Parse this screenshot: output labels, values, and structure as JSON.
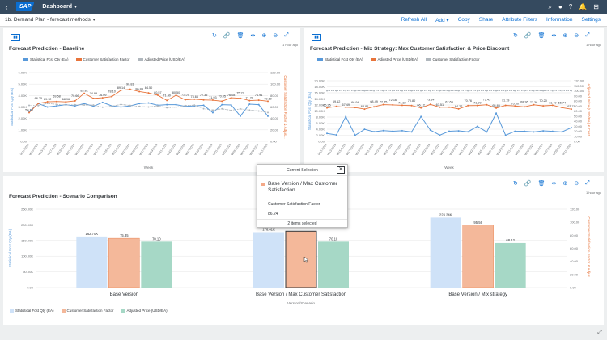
{
  "shell": {
    "back": "‹",
    "logo": "SAP",
    "title": "Dashboard",
    "caret": "▾",
    "icons": [
      "⌕",
      "●",
      "?",
      "🔔",
      "⊞"
    ]
  },
  "subbar": {
    "page_title": "1b. Demand Plan - forecast methods",
    "caret": "▾",
    "menu": [
      "Refresh All",
      "Add ▾",
      "Copy",
      "Share",
      "Attribute Filters",
      "Information",
      "Settings"
    ]
  },
  "panels": [
    {
      "title": "Forecast Prediction - Baseline",
      "ago": "1 hour ago"
    },
    {
      "title": "Forecast Prediction - Mix Strategy: Max Customer Satisfaction & Price Discount",
      "ago": "1 hour ago"
    },
    {
      "title": "Forecast Prediction - Scenario Comparison",
      "ago": "1 hour ago"
    }
  ],
  "toolbar_icons": [
    "↻",
    "🔗",
    "🗑",
    "⇹",
    "⊕",
    "⊖",
    "⤢"
  ],
  "legend1": [
    "Statistical Fcst Qty (EA)",
    "Customer Satisfaction Factor",
    "Adjusted Price (USD/EA)"
  ],
  "legend2": [
    "Statistical Fcst Qty (EA)",
    "Adjusted Price (USD/EA)",
    "Customer Satisfaction Factor"
  ],
  "legend3": [
    "Statistical Fcst Qty (EA)",
    "Customer Satisfaction Factor",
    "Adjusted Price (USD/EA)"
  ],
  "colors": {
    "blue": "#5899da",
    "orange": "#e8743b",
    "green": "#19a979",
    "blue_fill": "#cfe2f8",
    "orange_fill": "#f4b89a",
    "green_fill": "#a6d8c6",
    "accent": "#0a6ed1"
  },
  "axis": {
    "xlabel": "Week",
    "xlabel3": "Version/Scenario",
    "ylabel_left": "Statistical Fcst Qty (EA)",
    "ylabel_right": "Customer Satisfaction Factor & Adjus...",
    "ylabel_right2": "Adjusted Price (USD/EA) & Cust..."
  },
  "chart_data": [
    {
      "type": "line",
      "title": "Forecast Prediction - Baseline",
      "y_ticks": [
        "6.00K",
        "5.00K",
        "4.00K",
        "3.00K",
        "2.00K",
        "1.00K",
        "0.00"
      ],
      "y2_ticks": [
        "120.00",
        "100.00",
        "80.00",
        "60.00",
        "40.00",
        "20.00",
        "0.00"
      ],
      "x": [
        "W11-2019",
        "W13-2019",
        "W15-2019",
        "W17-2019",
        "W19-2019",
        "W21-2019",
        "W23-2019",
        "W25-2019",
        "W27-2019",
        "W29-2019",
        "W31-2019",
        "W33-2019",
        "W35-2019",
        "W37-2019",
        "W39-2019",
        "W41-2019",
        "W43-2019",
        "W45-2019",
        "W47-2019",
        "W49-2019",
        "W51-2019",
        "W01-2020",
        "W03-2020",
        "W05-2020",
        "W07-2020",
        "W09-2020",
        "W11-2020"
      ],
      "series": [
        {
          "name": "Statistical Fcst Qty (EA)",
          "values": [
            2600,
            3300,
            3000,
            3100,
            3200,
            3100,
            3300,
            3060,
            3400,
            3100,
            3000,
            3100,
            3300,
            3350,
            3150,
            3200,
            3200,
            3050,
            3100,
            3150,
            2510,
            3200,
            3180,
            2200,
            3250,
            3200,
            2200
          ]
        },
        {
          "name": "Customer Satisfaction Factor",
          "values": [
            50.18,
            66.25,
            69.12,
            69.58,
            68.96,
            70.66,
            83.81,
            74.99,
            76.09,
            78.1,
            89.14,
            90.81,
            86.84,
            84.5,
            80.57,
            71.5,
            80.5,
            72.51,
            73.66,
            72.35,
            71.93,
            70.05,
            76.08,
            75.22,
            71.2,
            71.91,
            70.1
          ]
        },
        {
          "name": "Adjusted Price (USD/EA)",
          "values": [
            62.8,
            62.4,
            66.3,
            64.6,
            63.6,
            63.9,
            63.6,
            63.3,
            59.6,
            61.58,
            64.36,
            62.7,
            61.06,
            60.08,
            62.0,
            58.7,
            59.7,
            62.53,
            63.2,
            57.0,
            54.5,
            56.8,
            54.2,
            56.6,
            54.6,
            53.0,
            50.36
          ]
        }
      ],
      "labels": [
        "65.25",
        "66.25",
        "69.12",
        "69.58",
        "68.96",
        "70.66",
        "83.81",
        "74.99",
        "76.09",
        "90.81",
        "89.27",
        "86.84",
        "88.57",
        "67.14",
        "63.52",
        "64.36",
        "61.58",
        "58.74",
        "50.18",
        "3.06K",
        "3.10K",
        "2.51K",
        "3.05K",
        "62.53",
        "72.51",
        "73.66",
        "78.08",
        "71.93",
        "50.36"
      ]
    },
    {
      "type": "line",
      "title": "Forecast Prediction - Mix Strategy: Max Customer Satisfaction & Price Discount",
      "y_ticks": [
        "20.00K",
        "18.00K",
        "16.00K",
        "14.00K",
        "12.00K",
        "10.00K",
        "8.00K",
        "6.00K",
        "4.00K",
        "2.00K",
        "0.00"
      ],
      "y2_ticks": [
        "120.00",
        "110.00",
        "100.00",
        "90.00",
        "80.00",
        "70.00",
        "60.00",
        "50.00",
        "40.00",
        "30.00",
        "20.00",
        "10.00",
        "0.00"
      ],
      "x": [
        "W11-2019",
        "W13-2019",
        "W15-2019",
        "W17-2019",
        "W19-2019",
        "W21-2019",
        "W23-2019",
        "W25-2019",
        "W27-2019",
        "W29-2019",
        "W31-2019",
        "W33-2019",
        "W35-2019",
        "W37-2019",
        "W39-2019",
        "W41-2019",
        "W43-2019",
        "W45-2019",
        "W47-2019",
        "W49-2019",
        "W51-2019",
        "W01-2020",
        "W03-2020",
        "W05-2020",
        "W07-2020",
        "W09-2020",
        "W11-2020"
      ],
      "series": [
        {
          "name": "Statistical Fcst Qty (EA)",
          "values": [
            2600,
            2100,
            8170,
            2000,
            3960,
            3180,
            3520,
            3320,
            3500,
            3100,
            8170,
            3700,
            2050,
            3330,
            3450,
            3150,
            4930,
            3100,
            9270,
            2020,
            3310,
            3330,
            3100,
            3450,
            3300,
            3100,
            4510
          ]
        },
        {
          "name": "Adjusted Price (USD/EA)",
          "values": [
            66.25,
            69.12,
            67.49,
            66.94,
            63.86,
            68.49,
            72.75,
            72.16,
            71.32,
            70.8,
            66.12,
            73.14,
            67.51,
            67.69,
            64.22,
            70.76,
            71.0,
            72.43,
            65.85,
            71.19,
            70.0,
            68.36,
            72.36,
            70.2,
            71.4,
            66.74,
            63.74
          ]
        },
        {
          "name": "Customer Satisfaction Factor",
          "values": [
            100,
            100,
            100,
            100,
            100,
            100,
            100,
            100,
            100,
            100,
            100,
            100,
            100,
            100,
            100,
            100,
            100,
            100,
            100,
            100,
            100,
            100,
            100,
            100,
            100,
            100,
            100
          ]
        }
      ],
      "labels": [
        "100.00",
        "66.25",
        "69.12",
        "62.62",
        "67.49",
        "66.94",
        "63.86",
        "68.49",
        "72.75",
        "72.16",
        "71.32",
        "66.12",
        "73.14",
        "67.51",
        "64.22",
        "70.76",
        "72.43",
        "65.85",
        "71.19",
        "71.65",
        "63.74",
        "8.17K",
        "3.96K",
        "3.52K",
        "3.32K",
        "3.31K",
        "9.27K",
        "4.93K",
        "4.51K",
        "2.02K",
        "3.33K"
      ]
    },
    {
      "type": "bar",
      "title": "Forecast Prediction - Scenario Comparison",
      "categories": [
        "Base Version",
        "Base Version / Max Customer Satisfaction",
        "Base Version / Mix strategy"
      ],
      "y_ticks": [
        "250.00K",
        "200.00K",
        "150.00K",
        "100.00K",
        "50.00K",
        "0.00"
      ],
      "y2_ticks": [
        "120.00",
        "100.00",
        "80.00",
        "60.00",
        "40.00",
        "20.00",
        "0.00"
      ],
      "series": [
        {
          "name": "Statistical Fcst Qty (EA)",
          "values": [
            162700,
            176610,
            223240
          ],
          "labels": [
            "162.70K",
            "176.61K",
            "223.24K"
          ]
        },
        {
          "name": "Customer Satisfaction Factor",
          "values": [
            75.35,
            86.24,
            95.56
          ],
          "labels": [
            "75.35",
            "",
            "95.56"
          ]
        },
        {
          "name": "Adjusted Price (USD/EA)",
          "values": [
            70.1,
            70.1,
            68.12
          ],
          "labels": [
            "70.10",
            "70.10",
            "68.12"
          ]
        }
      ]
    }
  ],
  "popup": {
    "header": "Current Selection",
    "close": "✕",
    "selection": "Base Version / Max Customer Satisfaction",
    "field": "Customer Satisfaction Factor",
    "value": "86.24",
    "footer": "2 items selected"
  },
  "footer_icon": "⤢"
}
